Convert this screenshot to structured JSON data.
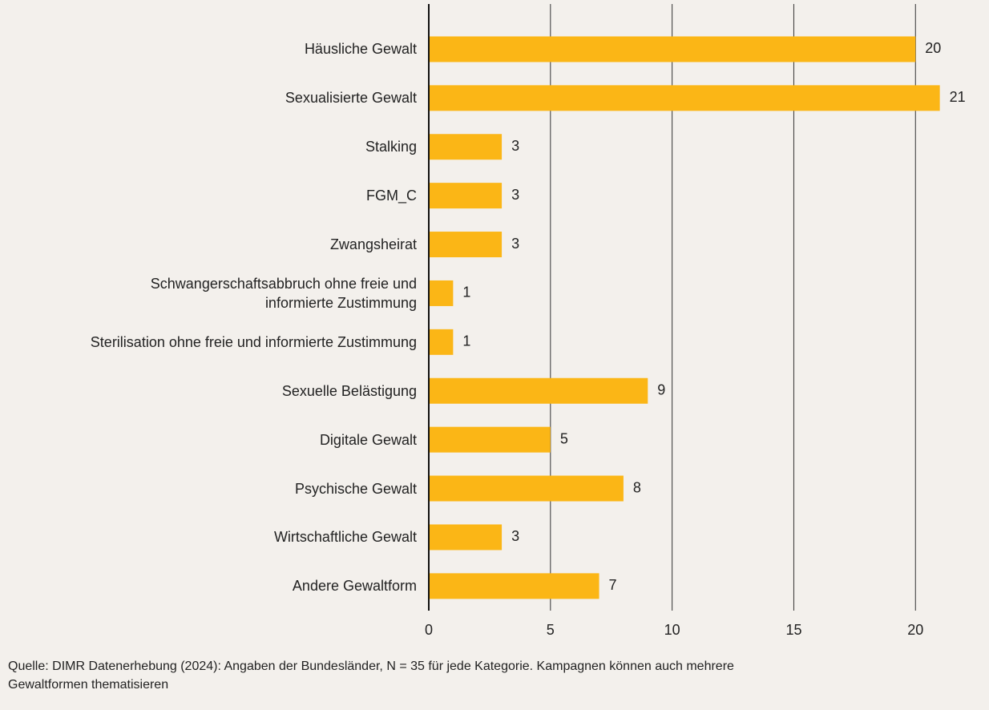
{
  "chart_data": {
    "type": "bar",
    "orientation": "horizontal",
    "categories": [
      "Häusliche Gewalt",
      "Sexualisierte Gewalt",
      "Stalking",
      "FGM_C",
      "Zwangsheirat",
      "Schwangerschaftsabbruch ohne freie und\ninformierte Zustimmung",
      "Sterilisation ohne freie und informierte Zustimmung",
      "Sexuelle Belästigung",
      "Digitale Gewalt",
      "Psychische Gewalt",
      "Wirtschaftliche Gewalt",
      "Andere Gewaltform"
    ],
    "values": [
      20,
      21,
      3,
      3,
      3,
      1,
      1,
      9,
      5,
      8,
      3,
      7
    ],
    "color": "#fbb616",
    "xlim": [
      0,
      22
    ],
    "xticks": [
      0,
      5,
      10,
      15,
      20
    ],
    "grid": true,
    "note": "Quelle: DIMR Datenerhebung (2024): Angaben der Bundesländer, N = 35 für jede Kategorie. Kampagnen können auch mehrere\nGewaltformen thematisieren"
  }
}
